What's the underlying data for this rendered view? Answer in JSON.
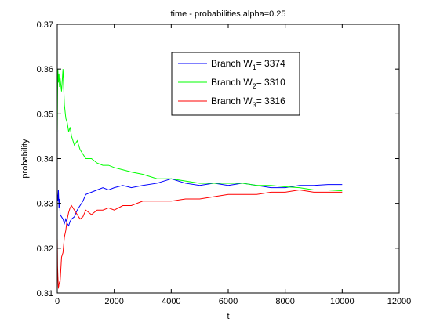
{
  "chart_data": {
    "type": "line",
    "title": "time - probabilities,alpha=0.25",
    "xlabel": "t",
    "ylabel": "probability",
    "xlim": [
      0,
      12000
    ],
    "ylim": [
      0.31,
      0.37
    ],
    "xticks": [
      0,
      2000,
      4000,
      6000,
      8000,
      10000,
      12000
    ],
    "yticks": [
      0.31,
      0.32,
      0.33,
      0.34,
      0.35,
      0.36,
      0.37
    ],
    "grid": false,
    "legend_position": "top-center",
    "series": [
      {
        "name": "Branch W1= 3374",
        "legend": {
          "prefix": "Branch W",
          "sub": "1",
          "suffix": "= 3374"
        },
        "color": "#0000ff",
        "x": [
          1,
          20,
          40,
          60,
          80,
          100,
          150,
          200,
          250,
          300,
          350,
          400,
          450,
          500,
          600,
          700,
          800,
          900,
          1000,
          1200,
          1400,
          1600,
          1800,
          2000,
          2300,
          2600,
          3000,
          3500,
          4000,
          4500,
          5000,
          5500,
          6000,
          6500,
          7000,
          7500,
          8000,
          8500,
          9000,
          9500,
          10000
        ],
        "y": [
          0.332,
          0.3305,
          0.333,
          0.329,
          0.331,
          0.3275,
          0.327,
          0.3265,
          0.3255,
          0.3265,
          0.3255,
          0.325,
          0.326,
          0.3265,
          0.327,
          0.3285,
          0.3295,
          0.3305,
          0.332,
          0.3325,
          0.333,
          0.3335,
          0.333,
          0.3335,
          0.334,
          0.3335,
          0.334,
          0.3345,
          0.3355,
          0.3345,
          0.334,
          0.3345,
          0.334,
          0.3345,
          0.334,
          0.3335,
          0.3335,
          0.334,
          0.334,
          0.3342,
          0.3342
        ]
      },
      {
        "name": "Branch W2= 3310",
        "legend": {
          "prefix": "Branch W",
          "sub": "2",
          "suffix": "= 3310"
        },
        "color": "#00ff00",
        "x": [
          1,
          10,
          20,
          40,
          60,
          80,
          100,
          150,
          200,
          250,
          300,
          350,
          400,
          450,
          500,
          600,
          700,
          800,
          900,
          1000,
          1200,
          1400,
          1600,
          1800,
          2000,
          2300,
          2600,
          3000,
          3500,
          4000,
          4500,
          5000,
          5500,
          6000,
          6500,
          7000,
          7500,
          8000,
          8500,
          9000,
          9500,
          10000
        ],
        "y": [
          0.346,
          0.354,
          0.36,
          0.357,
          0.359,
          0.356,
          0.358,
          0.355,
          0.36,
          0.352,
          0.349,
          0.348,
          0.346,
          0.347,
          0.345,
          0.343,
          0.344,
          0.342,
          0.341,
          0.34,
          0.34,
          0.339,
          0.3385,
          0.3385,
          0.338,
          0.3375,
          0.337,
          0.3365,
          0.3355,
          0.3355,
          0.335,
          0.3345,
          0.3345,
          0.3345,
          0.3345,
          0.334,
          0.334,
          0.3337,
          0.3335,
          0.333,
          0.333,
          0.3328
        ]
      },
      {
        "name": "Branch W3= 3316",
        "legend": {
          "prefix": "Branch W",
          "sub": "3",
          "suffix": "= 3316"
        },
        "color": "#ff0000",
        "x": [
          1,
          10,
          20,
          40,
          60,
          80,
          100,
          150,
          200,
          250,
          300,
          350,
          400,
          450,
          500,
          600,
          700,
          800,
          900,
          1000,
          1200,
          1400,
          1600,
          1800,
          2000,
          2300,
          2600,
          3000,
          3500,
          4000,
          4500,
          5000,
          5500,
          6000,
          6500,
          7000,
          7500,
          8000,
          8500,
          9000,
          9500,
          10000
        ],
        "y": [
          0.322,
          0.316,
          0.314,
          0.311,
          0.312,
          0.3125,
          0.3125,
          0.318,
          0.319,
          0.3225,
          0.324,
          0.3265,
          0.328,
          0.329,
          0.3295,
          0.3285,
          0.3275,
          0.3265,
          0.327,
          0.3285,
          0.3275,
          0.3285,
          0.3285,
          0.329,
          0.3285,
          0.3295,
          0.3295,
          0.3305,
          0.3305,
          0.3305,
          0.331,
          0.331,
          0.3315,
          0.332,
          0.332,
          0.332,
          0.3325,
          0.3325,
          0.333,
          0.3325,
          0.3325,
          0.3325
        ]
      }
    ]
  }
}
